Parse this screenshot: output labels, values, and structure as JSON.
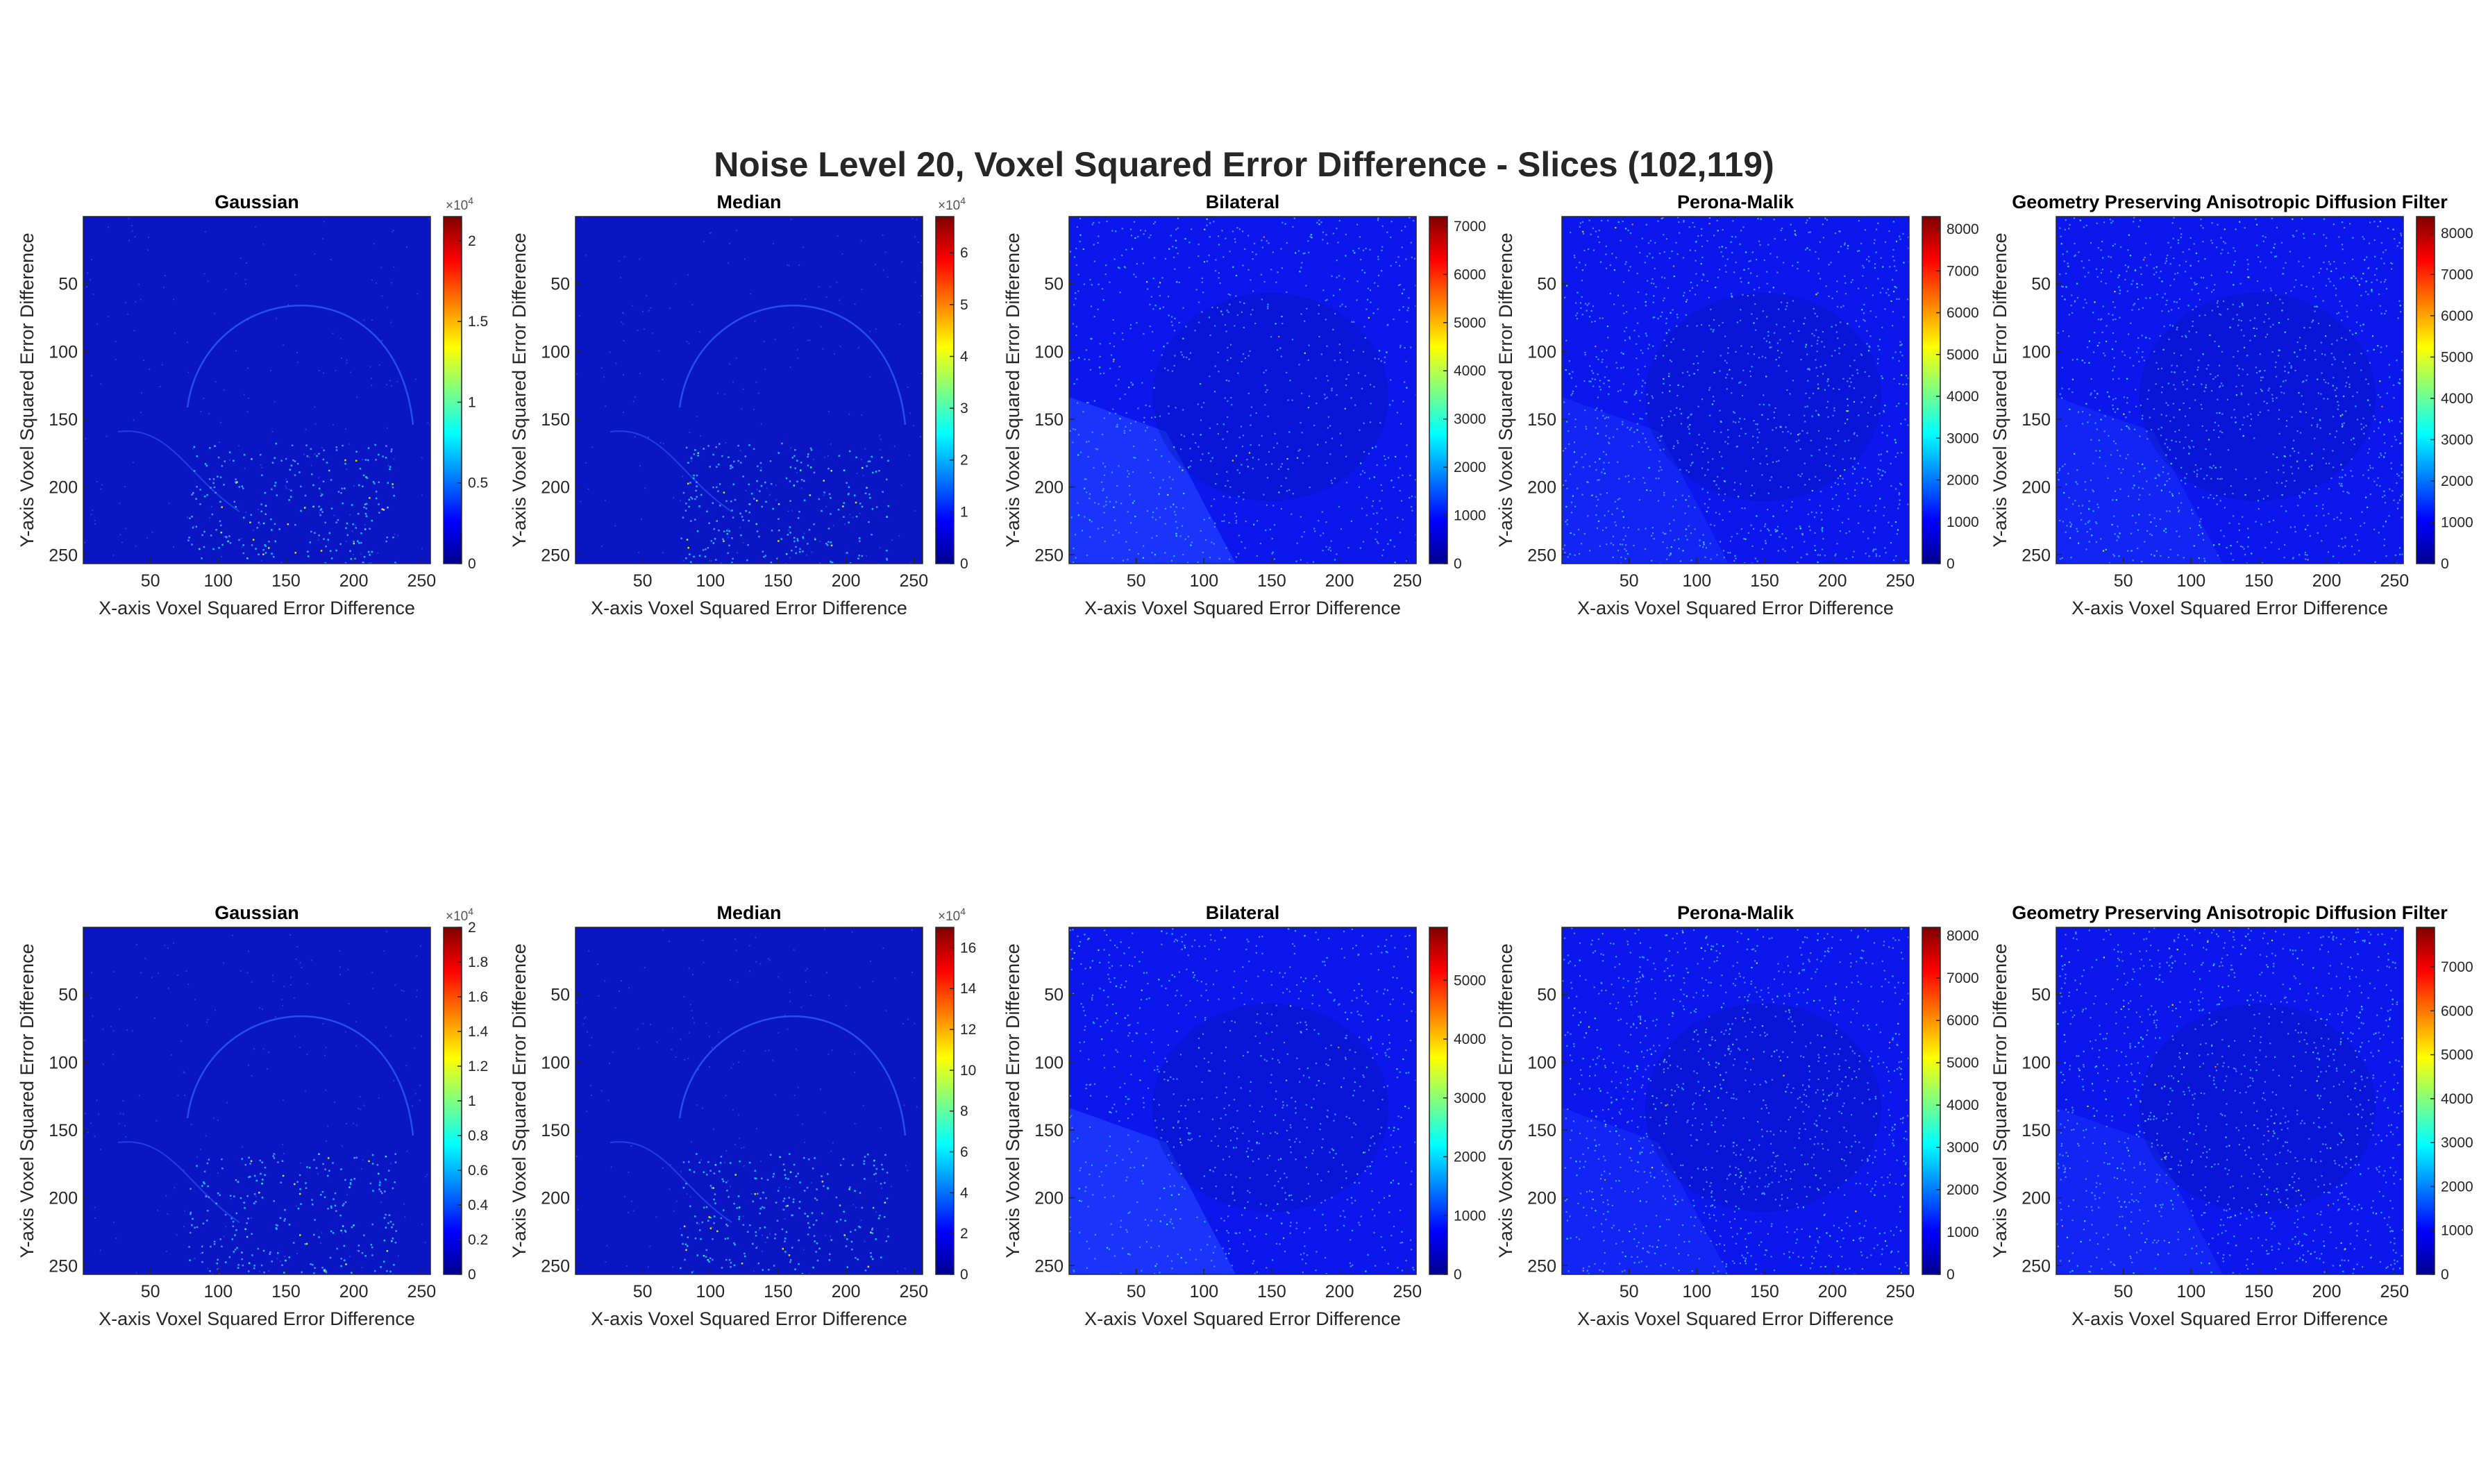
{
  "figure": {
    "title": "Noise Level 20, Voxel Squared Error Difference - Slices (102,119)"
  },
  "colors": {
    "jet_dark_blue": "#00008f",
    "jet_blue": "#0000ff",
    "jet_cyan": "#00ffff",
    "jet_yellow": "#ffff00",
    "jet_red": "#ff0000",
    "jet_dark_red": "#800000",
    "axis_text": "#262626"
  },
  "chart_data": [
    {
      "type": "heatmap",
      "row": 1,
      "title": "Gaussian",
      "xlabel": "X-axis Voxel Squared Error Difference",
      "ylabel": "Y-axis Voxel Squared Error Difference",
      "xticks": [
        "50",
        "100",
        "150",
        "200",
        "250"
      ],
      "yticks": [
        "50",
        "100",
        "150",
        "200",
        "250"
      ],
      "xlim": [
        1,
        256
      ],
      "ylim": [
        1,
        256
      ],
      "colormap": "jet",
      "clim": [
        0,
        21500
      ],
      "colorbar_ticks": [
        0,
        5000,
        10000,
        15000,
        20000
      ],
      "colorbar_tick_labels": [
        "0",
        "0.5",
        "1",
        "1.5",
        "2"
      ],
      "colorbar_exponent": "4",
      "texture": "sparse"
    },
    {
      "type": "heatmap",
      "row": 1,
      "title": "Median",
      "xlabel": "X-axis Voxel Squared Error Difference",
      "ylabel": "Y-axis Voxel Squared Error Difference",
      "xticks": [
        "50",
        "100",
        "150",
        "200",
        "250"
      ],
      "yticks": [
        "50",
        "100",
        "150",
        "200",
        "250"
      ],
      "xlim": [
        1,
        256
      ],
      "ylim": [
        1,
        256
      ],
      "colormap": "jet",
      "clim": [
        0,
        67000
      ],
      "colorbar_ticks": [
        0,
        10000,
        20000,
        30000,
        40000,
        50000,
        60000
      ],
      "colorbar_tick_labels": [
        "0",
        "1",
        "2",
        "3",
        "4",
        "5",
        "6"
      ],
      "colorbar_exponent": "4",
      "texture": "sparse"
    },
    {
      "type": "heatmap",
      "row": 1,
      "title": "Bilateral",
      "xlabel": "X-axis Voxel Squared Error Difference",
      "ylabel": "Y-axis Voxel Squared Error Difference",
      "xticks": [
        "50",
        "100",
        "150",
        "200",
        "250"
      ],
      "yticks": [
        "50",
        "100",
        "150",
        "200",
        "250"
      ],
      "xlim": [
        1,
        256
      ],
      "ylim": [
        1,
        256
      ],
      "colormap": "jet",
      "clim": [
        0,
        7200
      ],
      "colorbar_ticks": [
        0,
        1000,
        2000,
        3000,
        4000,
        5000,
        6000,
        7000
      ],
      "colorbar_tick_labels": [
        "0",
        "1000",
        "2000",
        "3000",
        "4000",
        "5000",
        "6000",
        "7000"
      ],
      "colorbar_exponent": "",
      "texture": "noisy"
    },
    {
      "type": "heatmap",
      "row": 1,
      "title": "Perona-Malik",
      "xlabel": "X-axis Voxel Squared Error Difference",
      "ylabel": "Y-axis Voxel Squared Error Difference",
      "xticks": [
        "50",
        "100",
        "150",
        "200",
        "250"
      ],
      "yticks": [
        "50",
        "100",
        "150",
        "200",
        "250"
      ],
      "xlim": [
        1,
        256
      ],
      "ylim": [
        1,
        256
      ],
      "colormap": "jet",
      "clim": [
        0,
        8300
      ],
      "colorbar_ticks": [
        0,
        1000,
        2000,
        3000,
        4000,
        5000,
        6000,
        7000,
        8000
      ],
      "colorbar_tick_labels": [
        "0",
        "1000",
        "2000",
        "3000",
        "4000",
        "5000",
        "6000",
        "7000",
        "8000"
      ],
      "colorbar_exponent": "",
      "texture": "noisy"
    },
    {
      "type": "heatmap",
      "row": 1,
      "title": "Geometry Preserving Anisotropic Diffusion Filter",
      "xlabel": "X-axis Voxel Squared Error Difference",
      "ylabel": "Y-axis Voxel Squared Error Difference",
      "xticks": [
        "50",
        "100",
        "150",
        "200",
        "250"
      ],
      "yticks": [
        "50",
        "100",
        "150",
        "200",
        "250"
      ],
      "xlim": [
        1,
        256
      ],
      "ylim": [
        1,
        256
      ],
      "colormap": "jet",
      "clim": [
        0,
        8400
      ],
      "colorbar_ticks": [
        0,
        1000,
        2000,
        3000,
        4000,
        5000,
        6000,
        7000,
        8000
      ],
      "colorbar_tick_labels": [
        "0",
        "1000",
        "2000",
        "3000",
        "4000",
        "5000",
        "6000",
        "7000",
        "8000"
      ],
      "colorbar_exponent": "",
      "texture": "noisy"
    },
    {
      "type": "heatmap",
      "row": 2,
      "title": "Gaussian",
      "xlabel": "X-axis Voxel Squared Error Difference",
      "ylabel": "Y-axis Voxel Squared Error Difference",
      "xticks": [
        "50",
        "100",
        "150",
        "200",
        "250"
      ],
      "yticks": [
        "50",
        "100",
        "150",
        "200",
        "250"
      ],
      "xlim": [
        1,
        256
      ],
      "ylim": [
        1,
        256
      ],
      "colormap": "jet",
      "clim": [
        0,
        20000
      ],
      "colorbar_ticks": [
        0,
        2000,
        4000,
        6000,
        8000,
        10000,
        12000,
        14000,
        16000,
        18000,
        20000
      ],
      "colorbar_tick_labels": [
        "0",
        "0.2",
        "0.4",
        "0.6",
        "0.8",
        "1",
        "1.2",
        "1.4",
        "1.6",
        "1.8",
        "2"
      ],
      "colorbar_exponent": "4",
      "texture": "sparse"
    },
    {
      "type": "heatmap",
      "row": 2,
      "title": "Median",
      "xlabel": "X-axis Voxel Squared Error Difference",
      "ylabel": "Y-axis Voxel Squared Error Difference",
      "xticks": [
        "50",
        "100",
        "150",
        "200",
        "250"
      ],
      "yticks": [
        "50",
        "100",
        "150",
        "200",
        "250"
      ],
      "xlim": [
        1,
        256
      ],
      "ylim": [
        1,
        256
      ],
      "colormap": "jet",
      "clim": [
        0,
        170000
      ],
      "colorbar_ticks": [
        0,
        20000,
        40000,
        60000,
        80000,
        100000,
        120000,
        140000,
        160000
      ],
      "colorbar_tick_labels": [
        "0",
        "2",
        "4",
        "6",
        "8",
        "10",
        "12",
        "14",
        "16"
      ],
      "colorbar_exponent": "4",
      "texture": "sparse"
    },
    {
      "type": "heatmap",
      "row": 2,
      "title": "Bilateral",
      "xlabel": "X-axis Voxel Squared Error Difference",
      "ylabel": "Y-axis Voxel Squared Error Difference",
      "xticks": [
        "50",
        "100",
        "150",
        "200",
        "250"
      ],
      "yticks": [
        "50",
        "100",
        "150",
        "200",
        "250"
      ],
      "xlim": [
        1,
        256
      ],
      "ylim": [
        1,
        256
      ],
      "colormap": "jet",
      "clim": [
        0,
        5900
      ],
      "colorbar_ticks": [
        0,
        1000,
        2000,
        3000,
        4000,
        5000
      ],
      "colorbar_tick_labels": [
        "0",
        "1000",
        "2000",
        "3000",
        "4000",
        "5000"
      ],
      "colorbar_exponent": "",
      "texture": "noisy"
    },
    {
      "type": "heatmap",
      "row": 2,
      "title": "Perona-Malik",
      "xlabel": "X-axis Voxel Squared Error Difference",
      "ylabel": "Y-axis Voxel Squared Error Difference",
      "xticks": [
        "50",
        "100",
        "150",
        "200",
        "250"
      ],
      "yticks": [
        "50",
        "100",
        "150",
        "200",
        "250"
      ],
      "xlim": [
        1,
        256
      ],
      "ylim": [
        1,
        256
      ],
      "colormap": "jet",
      "clim": [
        0,
        8200
      ],
      "colorbar_ticks": [
        0,
        1000,
        2000,
        3000,
        4000,
        5000,
        6000,
        7000,
        8000
      ],
      "colorbar_tick_labels": [
        "0",
        "1000",
        "2000",
        "3000",
        "4000",
        "5000",
        "6000",
        "7000",
        "8000"
      ],
      "colorbar_exponent": "",
      "texture": "noisy"
    },
    {
      "type": "heatmap",
      "row": 2,
      "title": "Geometry Preserving Anisotropic Diffusion Filter",
      "xlabel": "X-axis Voxel Squared Error Difference",
      "ylabel": "Y-axis Voxel Squared Error Difference",
      "xticks": [
        "50",
        "100",
        "150",
        "200",
        "250"
      ],
      "yticks": [
        "50",
        "100",
        "150",
        "200",
        "250"
      ],
      "xlim": [
        1,
        256
      ],
      "ylim": [
        1,
        256
      ],
      "colormap": "jet",
      "clim": [
        0,
        7900
      ],
      "colorbar_ticks": [
        0,
        1000,
        2000,
        3000,
        4000,
        5000,
        6000,
        7000
      ],
      "colorbar_tick_labels": [
        "0",
        "1000",
        "2000",
        "3000",
        "4000",
        "5000",
        "6000",
        "7000"
      ],
      "colorbar_exponent": "",
      "texture": "noisy"
    }
  ]
}
